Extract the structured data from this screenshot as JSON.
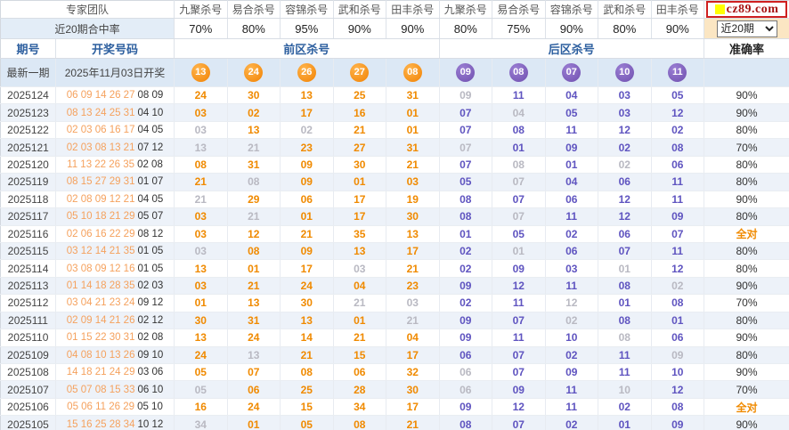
{
  "brand": {
    "logo_text": "cz89.com"
  },
  "header": {
    "team_label": "专家团队",
    "hitrate_label": "近20期合中率",
    "experts": [
      "九聚杀号",
      "易合杀号",
      "容锦杀号",
      "武和杀号",
      "田丰杀号",
      "九聚杀号",
      "易合杀号",
      "容锦杀号",
      "武和杀号",
      "田丰杀号"
    ],
    "hit_rates": [
      "70%",
      "80%",
      "95%",
      "90%",
      "90%",
      "80%",
      "75%",
      "90%",
      "80%",
      "90%"
    ],
    "period_filter": {
      "selected": "近20期"
    },
    "columns": {
      "period": "期号",
      "draw": "开奖号码",
      "front_kill": "前区杀号",
      "back_kill": "后区杀号",
      "accuracy": "准确率"
    }
  },
  "latest": {
    "label": "最新一期",
    "date": "2025年11月03日开奖",
    "front_balls": [
      "13",
      "24",
      "26",
      "27",
      "08"
    ],
    "back_balls": [
      "09",
      "08",
      "07",
      "10",
      "11"
    ]
  },
  "rows": [
    {
      "period": "2025124",
      "front_draw": "06 09 14 26 27",
      "back_draw": "08 09",
      "kills": [
        {
          "v": "24",
          "s": "o"
        },
        {
          "v": "30",
          "s": "o"
        },
        {
          "v": "13",
          "s": "o"
        },
        {
          "v": "25",
          "s": "o"
        },
        {
          "v": "31",
          "s": "o"
        },
        {
          "v": "09",
          "s": "g"
        },
        {
          "v": "11",
          "s": "p"
        },
        {
          "v": "04",
          "s": "p"
        },
        {
          "v": "03",
          "s": "p"
        },
        {
          "v": "05",
          "s": "p"
        }
      ],
      "accuracy": "90%"
    },
    {
      "period": "2025123",
      "front_draw": "08 13 24 25 31",
      "back_draw": "04 10",
      "kills": [
        {
          "v": "03",
          "s": "o"
        },
        {
          "v": "02",
          "s": "o"
        },
        {
          "v": "17",
          "s": "o"
        },
        {
          "v": "16",
          "s": "o"
        },
        {
          "v": "01",
          "s": "o"
        },
        {
          "v": "07",
          "s": "p"
        },
        {
          "v": "04",
          "s": "g"
        },
        {
          "v": "05",
          "s": "p"
        },
        {
          "v": "03",
          "s": "p"
        },
        {
          "v": "12",
          "s": "p"
        }
      ],
      "accuracy": "90%"
    },
    {
      "period": "2025122",
      "front_draw": "02 03 06 16 17",
      "back_draw": "04 05",
      "kills": [
        {
          "v": "03",
          "s": "g"
        },
        {
          "v": "13",
          "s": "o"
        },
        {
          "v": "02",
          "s": "g"
        },
        {
          "v": "21",
          "s": "o"
        },
        {
          "v": "01",
          "s": "o"
        },
        {
          "v": "07",
          "s": "p"
        },
        {
          "v": "08",
          "s": "p"
        },
        {
          "v": "11",
          "s": "p"
        },
        {
          "v": "12",
          "s": "p"
        },
        {
          "v": "02",
          "s": "p"
        }
      ],
      "accuracy": "80%"
    },
    {
      "period": "2025121",
      "front_draw": "02 03 08 13 21",
      "back_draw": "07 12",
      "kills": [
        {
          "v": "13",
          "s": "g"
        },
        {
          "v": "21",
          "s": "g"
        },
        {
          "v": "23",
          "s": "o"
        },
        {
          "v": "27",
          "s": "o"
        },
        {
          "v": "31",
          "s": "o"
        },
        {
          "v": "07",
          "s": "g"
        },
        {
          "v": "01",
          "s": "p"
        },
        {
          "v": "09",
          "s": "p"
        },
        {
          "v": "02",
          "s": "p"
        },
        {
          "v": "08",
          "s": "p"
        }
      ],
      "accuracy": "70%"
    },
    {
      "period": "2025120",
      "front_draw": "11 13 22 26 35",
      "back_draw": "02 08",
      "kills": [
        {
          "v": "08",
          "s": "o"
        },
        {
          "v": "31",
          "s": "o"
        },
        {
          "v": "09",
          "s": "o"
        },
        {
          "v": "30",
          "s": "o"
        },
        {
          "v": "21",
          "s": "o"
        },
        {
          "v": "07",
          "s": "p"
        },
        {
          "v": "08",
          "s": "g"
        },
        {
          "v": "01",
          "s": "p"
        },
        {
          "v": "02",
          "s": "g"
        },
        {
          "v": "06",
          "s": "p"
        }
      ],
      "accuracy": "80%"
    },
    {
      "period": "2025119",
      "front_draw": "08 15 27 29 31",
      "back_draw": "01 07",
      "kills": [
        {
          "v": "21",
          "s": "o"
        },
        {
          "v": "08",
          "s": "g"
        },
        {
          "v": "09",
          "s": "o"
        },
        {
          "v": "01",
          "s": "o"
        },
        {
          "v": "03",
          "s": "o"
        },
        {
          "v": "05",
          "s": "p"
        },
        {
          "v": "07",
          "s": "g"
        },
        {
          "v": "04",
          "s": "p"
        },
        {
          "v": "06",
          "s": "p"
        },
        {
          "v": "11",
          "s": "p"
        }
      ],
      "accuracy": "80%"
    },
    {
      "period": "2025118",
      "front_draw": "02 08 09 12 21",
      "back_draw": "04 05",
      "kills": [
        {
          "v": "21",
          "s": "g"
        },
        {
          "v": "29",
          "s": "o"
        },
        {
          "v": "06",
          "s": "o"
        },
        {
          "v": "17",
          "s": "o"
        },
        {
          "v": "19",
          "s": "o"
        },
        {
          "v": "08",
          "s": "p"
        },
        {
          "v": "07",
          "s": "p"
        },
        {
          "v": "06",
          "s": "p"
        },
        {
          "v": "12",
          "s": "p"
        },
        {
          "v": "11",
          "s": "p"
        }
      ],
      "accuracy": "90%"
    },
    {
      "period": "2025117",
      "front_draw": "05 10 18 21 29",
      "back_draw": "05 07",
      "kills": [
        {
          "v": "03",
          "s": "o"
        },
        {
          "v": "21",
          "s": "g"
        },
        {
          "v": "01",
          "s": "o"
        },
        {
          "v": "17",
          "s": "o"
        },
        {
          "v": "30",
          "s": "o"
        },
        {
          "v": "08",
          "s": "p"
        },
        {
          "v": "07",
          "s": "g"
        },
        {
          "v": "11",
          "s": "p"
        },
        {
          "v": "12",
          "s": "p"
        },
        {
          "v": "09",
          "s": "p"
        }
      ],
      "accuracy": "80%"
    },
    {
      "period": "2025116",
      "front_draw": "02 06 16 22 29",
      "back_draw": "08 12",
      "kills": [
        {
          "v": "03",
          "s": "o"
        },
        {
          "v": "12",
          "s": "o"
        },
        {
          "v": "21",
          "s": "o"
        },
        {
          "v": "35",
          "s": "o"
        },
        {
          "v": "13",
          "s": "o"
        },
        {
          "v": "01",
          "s": "p"
        },
        {
          "v": "05",
          "s": "p"
        },
        {
          "v": "02",
          "s": "p"
        },
        {
          "v": "06",
          "s": "p"
        },
        {
          "v": "07",
          "s": "p"
        }
      ],
      "accuracy": "全对"
    },
    {
      "period": "2025115",
      "front_draw": "03 12 14 21 35",
      "back_draw": "01 05",
      "kills": [
        {
          "v": "03",
          "s": "g"
        },
        {
          "v": "08",
          "s": "o"
        },
        {
          "v": "09",
          "s": "o"
        },
        {
          "v": "13",
          "s": "o"
        },
        {
          "v": "17",
          "s": "o"
        },
        {
          "v": "02",
          "s": "p"
        },
        {
          "v": "01",
          "s": "g"
        },
        {
          "v": "06",
          "s": "p"
        },
        {
          "v": "07",
          "s": "p"
        },
        {
          "v": "11",
          "s": "p"
        }
      ],
      "accuracy": "80%"
    },
    {
      "period": "2025114",
      "front_draw": "03 08 09 12 16",
      "back_draw": "01 05",
      "kills": [
        {
          "v": "13",
          "s": "o"
        },
        {
          "v": "01",
          "s": "o"
        },
        {
          "v": "17",
          "s": "o"
        },
        {
          "v": "03",
          "s": "g"
        },
        {
          "v": "21",
          "s": "o"
        },
        {
          "v": "02",
          "s": "p"
        },
        {
          "v": "09",
          "s": "p"
        },
        {
          "v": "03",
          "s": "p"
        },
        {
          "v": "01",
          "s": "g"
        },
        {
          "v": "12",
          "s": "p"
        }
      ],
      "accuracy": "80%"
    },
    {
      "period": "2025113",
      "front_draw": "01 14 18 28 35",
      "back_draw": "02 03",
      "kills": [
        {
          "v": "03",
          "s": "o"
        },
        {
          "v": "21",
          "s": "o"
        },
        {
          "v": "24",
          "s": "o"
        },
        {
          "v": "04",
          "s": "o"
        },
        {
          "v": "23",
          "s": "o"
        },
        {
          "v": "09",
          "s": "p"
        },
        {
          "v": "12",
          "s": "p"
        },
        {
          "v": "11",
          "s": "p"
        },
        {
          "v": "08",
          "s": "p"
        },
        {
          "v": "02",
          "s": "g"
        }
      ],
      "accuracy": "90%"
    },
    {
      "period": "2025112",
      "front_draw": "03 04 21 23 24",
      "back_draw": "09 12",
      "kills": [
        {
          "v": "01",
          "s": "o"
        },
        {
          "v": "13",
          "s": "o"
        },
        {
          "v": "30",
          "s": "o"
        },
        {
          "v": "21",
          "s": "g"
        },
        {
          "v": "03",
          "s": "g"
        },
        {
          "v": "02",
          "s": "p"
        },
        {
          "v": "11",
          "s": "p"
        },
        {
          "v": "12",
          "s": "g"
        },
        {
          "v": "01",
          "s": "p"
        },
        {
          "v": "08",
          "s": "p"
        }
      ],
      "accuracy": "70%"
    },
    {
      "period": "2025111",
      "front_draw": "02 09 14 21 26",
      "back_draw": "02 12",
      "kills": [
        {
          "v": "30",
          "s": "o"
        },
        {
          "v": "31",
          "s": "o"
        },
        {
          "v": "13",
          "s": "o"
        },
        {
          "v": "01",
          "s": "o"
        },
        {
          "v": "21",
          "s": "g"
        },
        {
          "v": "09",
          "s": "p"
        },
        {
          "v": "07",
          "s": "p"
        },
        {
          "v": "02",
          "s": "g"
        },
        {
          "v": "08",
          "s": "p"
        },
        {
          "v": "01",
          "s": "p"
        }
      ],
      "accuracy": "80%"
    },
    {
      "period": "2025110",
      "front_draw": "01 15 22 30 31",
      "back_draw": "02 08",
      "kills": [
        {
          "v": "13",
          "s": "o"
        },
        {
          "v": "24",
          "s": "o"
        },
        {
          "v": "14",
          "s": "o"
        },
        {
          "v": "21",
          "s": "o"
        },
        {
          "v": "04",
          "s": "o"
        },
        {
          "v": "09",
          "s": "p"
        },
        {
          "v": "11",
          "s": "p"
        },
        {
          "v": "10",
          "s": "p"
        },
        {
          "v": "08",
          "s": "g"
        },
        {
          "v": "06",
          "s": "p"
        }
      ],
      "accuracy": "90%"
    },
    {
      "period": "2025109",
      "front_draw": "04 08 10 13 26",
      "back_draw": "09 10",
      "kills": [
        {
          "v": "24",
          "s": "o"
        },
        {
          "v": "13",
          "s": "g"
        },
        {
          "v": "21",
          "s": "o"
        },
        {
          "v": "15",
          "s": "o"
        },
        {
          "v": "17",
          "s": "o"
        },
        {
          "v": "06",
          "s": "p"
        },
        {
          "v": "07",
          "s": "p"
        },
        {
          "v": "02",
          "s": "p"
        },
        {
          "v": "11",
          "s": "p"
        },
        {
          "v": "09",
          "s": "g"
        }
      ],
      "accuracy": "80%"
    },
    {
      "period": "2025108",
      "front_draw": "14 18 21 24 29",
      "back_draw": "03 06",
      "kills": [
        {
          "v": "05",
          "s": "o"
        },
        {
          "v": "07",
          "s": "o"
        },
        {
          "v": "08",
          "s": "o"
        },
        {
          "v": "06",
          "s": "o"
        },
        {
          "v": "32",
          "s": "o"
        },
        {
          "v": "06",
          "s": "g"
        },
        {
          "v": "07",
          "s": "p"
        },
        {
          "v": "09",
          "s": "p"
        },
        {
          "v": "11",
          "s": "p"
        },
        {
          "v": "10",
          "s": "p"
        }
      ],
      "accuracy": "90%"
    },
    {
      "period": "2025107",
      "front_draw": "05 07 08 15 33",
      "back_draw": "06 10",
      "kills": [
        {
          "v": "05",
          "s": "g"
        },
        {
          "v": "06",
          "s": "o"
        },
        {
          "v": "25",
          "s": "o"
        },
        {
          "v": "28",
          "s": "o"
        },
        {
          "v": "30",
          "s": "o"
        },
        {
          "v": "06",
          "s": "g"
        },
        {
          "v": "09",
          "s": "p"
        },
        {
          "v": "11",
          "s": "p"
        },
        {
          "v": "10",
          "s": "g"
        },
        {
          "v": "12",
          "s": "p"
        }
      ],
      "accuracy": "70%"
    },
    {
      "period": "2025106",
      "front_draw": "05 06 11 26 29",
      "back_draw": "05 10",
      "kills": [
        {
          "v": "16",
          "s": "o"
        },
        {
          "v": "24",
          "s": "o"
        },
        {
          "v": "15",
          "s": "o"
        },
        {
          "v": "34",
          "s": "o"
        },
        {
          "v": "17",
          "s": "o"
        },
        {
          "v": "09",
          "s": "p"
        },
        {
          "v": "12",
          "s": "p"
        },
        {
          "v": "11",
          "s": "p"
        },
        {
          "v": "02",
          "s": "p"
        },
        {
          "v": "08",
          "s": "p"
        }
      ],
      "accuracy": "全对"
    },
    {
      "period": "2025105",
      "front_draw": "15 16 25 28 34",
      "back_draw": "10 12",
      "kills": [
        {
          "v": "34",
          "s": "g"
        },
        {
          "v": "01",
          "s": "o"
        },
        {
          "v": "05",
          "s": "o"
        },
        {
          "v": "08",
          "s": "o"
        },
        {
          "v": "21",
          "s": "o"
        },
        {
          "v": "08",
          "s": "p"
        },
        {
          "v": "07",
          "s": "p"
        },
        {
          "v": "02",
          "s": "p"
        },
        {
          "v": "01",
          "s": "p"
        },
        {
          "v": "09",
          "s": "p"
        }
      ],
      "accuracy": "90%"
    }
  ],
  "colors": {
    "front_kill_correct": "#f08a00",
    "kill_missed": "#b9b9c2",
    "back_kill_correct": "#5f54c0",
    "front_ball": "#f18101",
    "back_ball": "#6f4fae",
    "header_blue": "#2d5f9f",
    "logo_square": "#ffff00",
    "logo_red": "#cf2020"
  }
}
